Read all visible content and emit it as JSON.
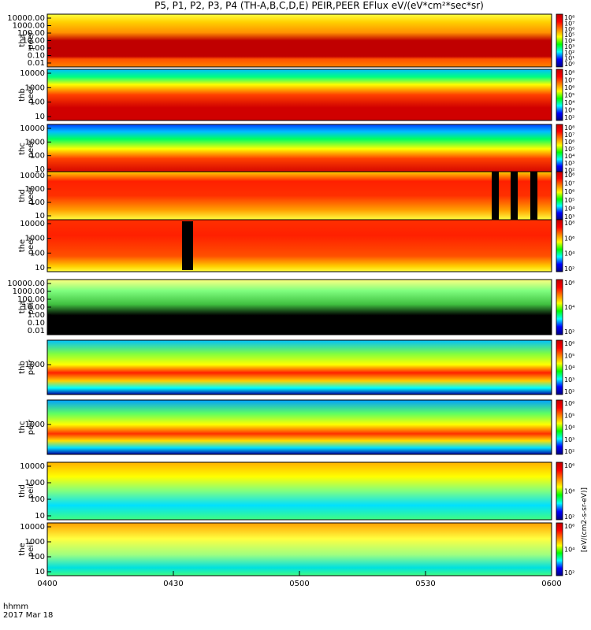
{
  "title": "P5, P1, P2, P3, P4 (TH-A,B,C,D,E) PEIR,PEER EFlux eV/(eV*cm²*sec*sr)",
  "x_axis": {
    "label_top": "hhmm",
    "label_bottom": "2017 Mar 18",
    "ticks": [
      "0400",
      "0430",
      "0500",
      "0530",
      "0600"
    ]
  },
  "colorbar_label": "[eV/(cm2-s-sr-eV)]",
  "chart_data": {
    "type": "heatmap",
    "x_range": [
      "0400",
      "0600"
    ],
    "panels": [
      {
        "probe": "tha",
        "species": "peer",
        "ylabel": "tha peer",
        "yscale": "log",
        "y_ticks": [
          "10000.00",
          "1000.00",
          "100.00",
          "10.00",
          "1.00",
          "0.10",
          "0.01"
        ],
        "cbar_ticks": [
          "10⁸",
          "10⁷",
          "10⁶",
          "10⁵",
          "10⁴",
          "10³",
          "10²",
          "10¹",
          "10⁰"
        ]
      },
      {
        "probe": "thb",
        "species": "peer",
        "ylabel": "thb peer",
        "yscale": "log",
        "y_ticks": [
          "10000",
          "1000",
          "100",
          "10"
        ],
        "cbar_ticks": [
          "10⁸",
          "10⁷",
          "10⁶",
          "10⁵",
          "10⁴",
          "10³",
          "10²"
        ]
      },
      {
        "probe": "thc",
        "species": "peer",
        "ylabel": "thc peer",
        "yscale": "log",
        "y_ticks": [
          "10000",
          "1000",
          "100",
          "10"
        ],
        "cbar_ticks": [
          "10⁸",
          "10⁷",
          "10⁶",
          "10⁵",
          "10⁴",
          "10³",
          "10²"
        ]
      },
      {
        "probe": "thd",
        "species": "peer",
        "ylabel": "thd peer",
        "yscale": "log",
        "y_ticks": [
          "10000",
          "1000",
          "100",
          "10"
        ],
        "cbar_ticks": [
          "10⁸",
          "10⁷",
          "10⁶",
          "10⁵",
          "10⁴",
          "10³"
        ]
      },
      {
        "probe": "the",
        "species": "peer",
        "ylabel": "the peer",
        "yscale": "log",
        "y_ticks": [
          "10000",
          "1000",
          "100",
          "10"
        ],
        "cbar_ticks": [
          "10⁸",
          "10⁶",
          "10⁴",
          "10²"
        ]
      },
      {
        "probe": "tha",
        "species": "peir",
        "ylabel": "tha peir",
        "yscale": "log",
        "y_ticks": [
          "10000.00",
          "1000.00",
          "100.00",
          "10.00",
          "1.00",
          "0.10",
          "0.01"
        ],
        "cbar_ticks": [
          "10⁶",
          "10⁴",
          "10²"
        ]
      },
      {
        "probe": "thb",
        "species": "peir",
        "ylabel": "thb peir",
        "yscale": "log",
        "y_ticks": [
          "1000"
        ],
        "cbar_ticks": [
          "10⁶",
          "10⁵",
          "10⁴",
          "10³",
          "10²"
        ]
      },
      {
        "probe": "thc",
        "species": "peir",
        "ylabel": "thc peir",
        "yscale": "log",
        "y_ticks": [
          "1000"
        ],
        "cbar_ticks": [
          "10⁶",
          "10⁵",
          "10⁴",
          "10³",
          "10²"
        ]
      },
      {
        "probe": "thd",
        "species": "peir",
        "ylabel": "thd peir",
        "yscale": "log",
        "y_ticks": [
          "10000",
          "1000",
          "100",
          "10"
        ],
        "cbar_ticks": [
          "10⁶",
          "10⁴",
          "10²"
        ]
      },
      {
        "probe": "the",
        "species": "peir",
        "ylabel": "the peir",
        "yscale": "log",
        "y_ticks": [
          "10000",
          "1000",
          "100",
          "10"
        ],
        "cbar_ticks": [
          "10⁶",
          "10⁴",
          "10²"
        ]
      }
    ],
    "colormap": [
      "#000080",
      "#0000ff",
      "#00ffff",
      "#00ff00",
      "#ffff00",
      "#ff8000",
      "#ff0000",
      "#c00000"
    ]
  }
}
